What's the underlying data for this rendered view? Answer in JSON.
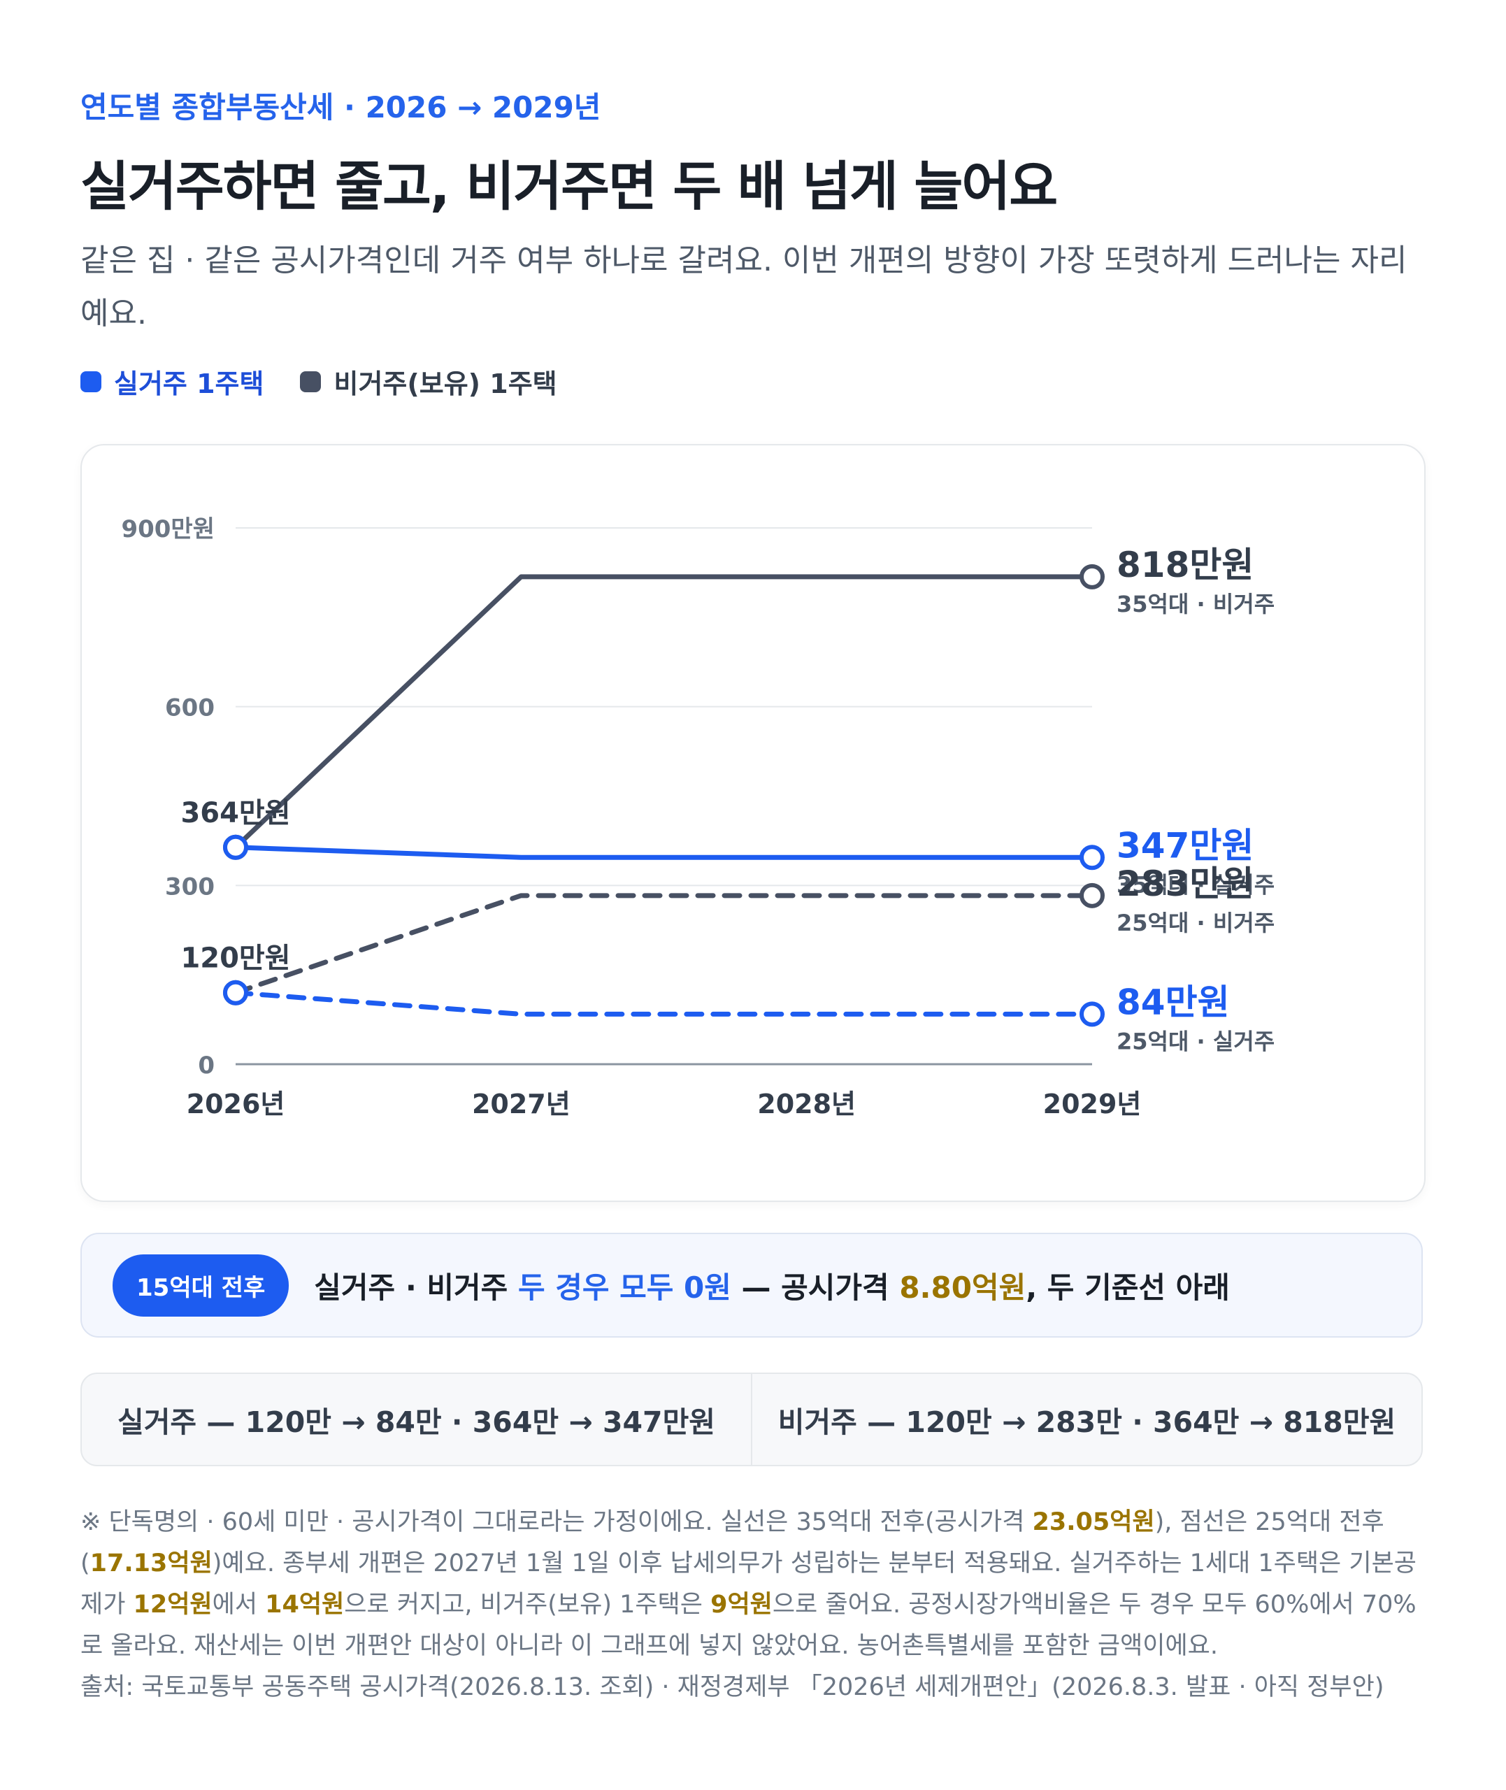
{
  "header": {
    "kicker": "연도별 종합부동산세 · 2026 → 2029년",
    "title": "실거주하면 줄고, 비거주면 두 배 넘게 늘어요",
    "subtitle": "같은 집 · 같은 공시가격인데 거주 여부 하나로 갈려요. 이번 개편의 방향이 가장 또렷하게 드러나는 자리예요."
  },
  "legend": {
    "items": [
      {
        "label": "실거주 1주택",
        "color": "#1d5cf0"
      },
      {
        "label": "비거주(보유) 1주택",
        "color": "#475063"
      }
    ]
  },
  "chart_data": {
    "type": "line",
    "x": [
      "2026년",
      "2027년",
      "2028년",
      "2029년"
    ],
    "y_ticks": [
      "0",
      "300",
      "600",
      "900만원"
    ],
    "ylim": [
      0,
      900
    ],
    "grid": true,
    "series": [
      {
        "name": "35억대 · 비거주",
        "style": "solid",
        "color": "#475063",
        "values": [
          364,
          818,
          818,
          818
        ]
      },
      {
        "name": "35억대 · 실거주",
        "style": "solid",
        "color": "#1d5cf0",
        "values": [
          364,
          347,
          347,
          347
        ]
      },
      {
        "name": "25억대 · 비거주",
        "style": "dashed",
        "color": "#475063",
        "values": [
          120,
          283,
          283,
          283
        ]
      },
      {
        "name": "25억대 · 실거주",
        "style": "dashed",
        "color": "#1d5cf0",
        "values": [
          120,
          84,
          84,
          84
        ]
      }
    ],
    "end_labels": [
      "818만원",
      "347만원",
      "283만원",
      "84만원"
    ],
    "start_labels": [
      "364만원",
      "120만원"
    ]
  },
  "note": {
    "pill": "15억대 전후",
    "text_a": "실거주 · 비거주 ",
    "text_hl": "두 경우 모두 0원",
    "text_b": " — 공시가격 ",
    "text_gold": "8.80억원",
    "text_c": ", 두 기준선 아래"
  },
  "compare": {
    "left": "실거주 — 120만 → 84만 · 364만 → 347만원",
    "right": "비거주 — 120만 → 283만 · 364만 → 818만원"
  },
  "footnote": {
    "p1": "※ 단독명의 · 60세 미만 · 공시가격이 그대로라는 가정이에요. 실선은 35억대 전후(공시가격 ",
    "g1": "23.05억원",
    "p2": "), 점선은 25억대 전후(",
    "g2": "17.13억원",
    "p3": ")예요. 종부세 개편은 2027년 1월 1일 이후 납세의무가 성립하는 분부터 적용돼요. 실거주하는 1세대 1주택은 기본공제가 ",
    "g3": "12억원",
    "p4": "에서 ",
    "g4": "14억원",
    "p5": "으로 커지고, 비거주(보유) 1주택은 ",
    "g5": "9억원",
    "p6": "으로 줄어요. 공정시장가액비율은 두 경우 모두 60%에서 70%로 올라요. 재산세는 이번 개편안 대상이 아니라 이 그래프에 넣지 않았어요. 농어촌특별세를 포함한 금액이에요.",
    "source": "출처: 국토교통부 공동주택 공시가격(2026.8.13. 조회) · 재정경제부 「2026년 세제개편안」(2026.8.3. 발표 · 아직 정부안)"
  }
}
